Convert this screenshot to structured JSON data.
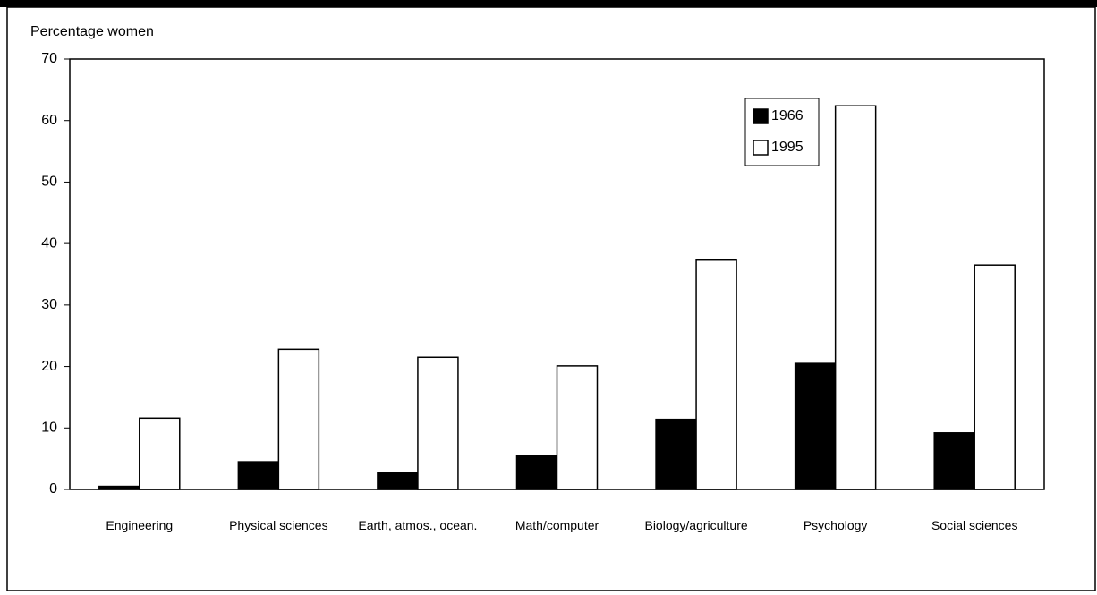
{
  "chart_data": {
    "type": "bar",
    "y_label": "Percentage women",
    "categories": [
      "Engineering",
      "Physical sciences",
      "Earth, atmos., ocean.",
      "Math/computer",
      "Biology/agriculture",
      "Psychology",
      "Social sciences"
    ],
    "series": [
      {
        "name": "1966",
        "color": "#000000",
        "values": [
          0.5,
          4.5,
          2.8,
          5.5,
          11.4,
          20.5,
          9.2
        ]
      },
      {
        "name": "1995",
        "color": "#ffffff",
        "values": [
          11.6,
          22.8,
          21.5,
          20.1,
          37.3,
          62.4,
          36.5
        ]
      }
    ],
    "ylim": [
      0,
      70
    ],
    "yticks": [
      0,
      10,
      20,
      30,
      40,
      50,
      60,
      70
    ],
    "grid": false,
    "legend": "upper right"
  }
}
